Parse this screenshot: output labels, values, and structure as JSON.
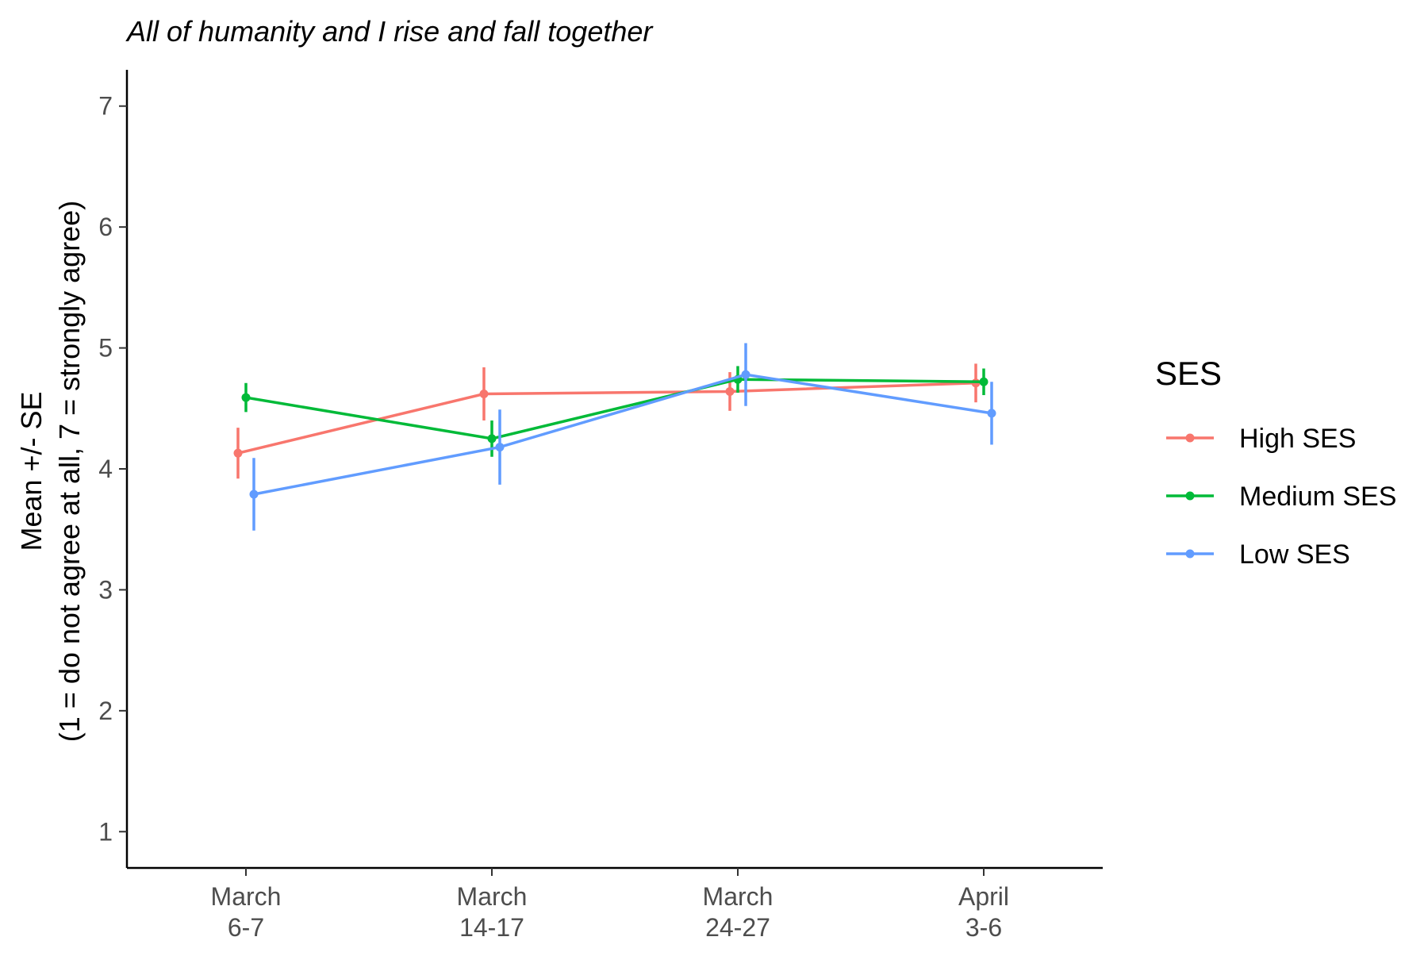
{
  "chart_data": {
    "type": "line",
    "title": "All of humanity and I rise and fall together",
    "xlabel": "",
    "ylabel_lines": [
      "Mean +/- SE",
      "(1 = do not agree at all, 7 = strongly agree)"
    ],
    "categories": [
      [
        "March",
        "6-7"
      ],
      [
        "March",
        "14-17"
      ],
      [
        "March",
        "24-27"
      ],
      [
        "April",
        "3-6"
      ]
    ],
    "ylim": [
      0.7,
      7.3
    ],
    "yticks": [
      1,
      2,
      3,
      4,
      5,
      6,
      7
    ],
    "grid": false,
    "legend": {
      "title": "SES",
      "position": "right"
    },
    "series": [
      {
        "name": "High SES",
        "color": "#F8766D",
        "values": [
          4.13,
          4.62,
          4.64,
          4.71
        ],
        "se": [
          0.21,
          0.22,
          0.16,
          0.16
        ]
      },
      {
        "name": "Medium SES",
        "color": "#00BA38",
        "values": [
          4.59,
          4.25,
          4.74,
          4.72
        ],
        "se": [
          0.12,
          0.15,
          0.11,
          0.11
        ]
      },
      {
        "name": "Low SES",
        "color": "#619CFF",
        "values": [
          3.79,
          4.18,
          4.78,
          4.46
        ],
        "se": [
          0.3,
          0.31,
          0.26,
          0.26
        ]
      }
    ]
  }
}
